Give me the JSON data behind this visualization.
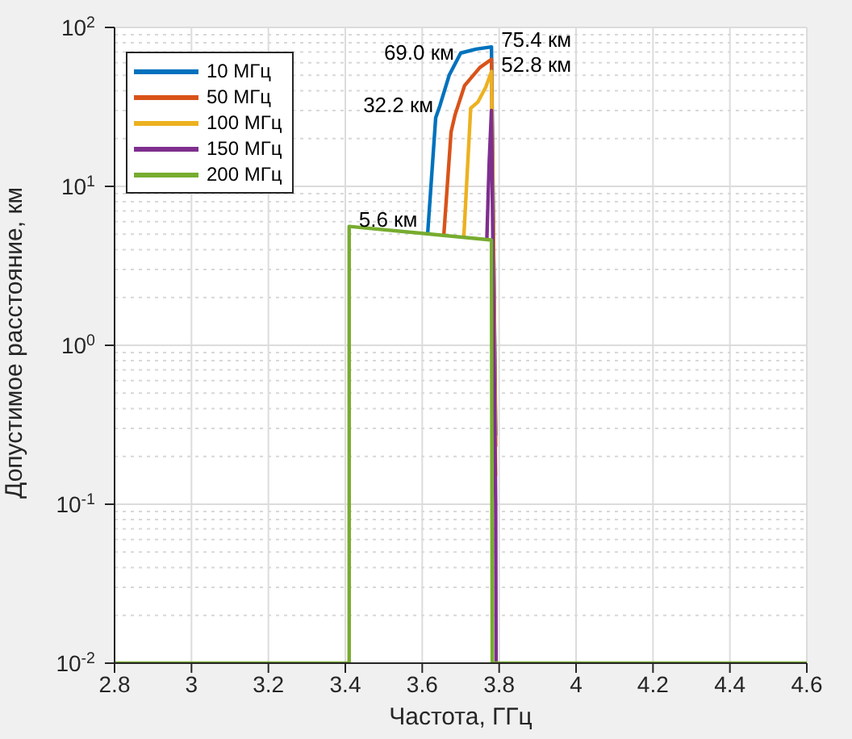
{
  "chart_data": {
    "type": "line",
    "xlabel": "Частота, ГГц",
    "ylabel": "Допустимое расстояние, км",
    "log": "y",
    "grid": true,
    "legend": "top left",
    "marker": "none",
    "line_style": "solid",
    "xlim": [
      2.8,
      4.6
    ],
    "xticks": [
      2.8,
      3,
      3.2,
      3.4,
      3.6,
      3.8,
      4,
      4.2,
      4.4,
      4.6
    ],
    "ylim": [
      0.01,
      100
    ],
    "yticks": [
      {
        "value": 0.01,
        "label": "10$^{-2}$"
      },
      {
        "value": 0.1,
        "label": "10$^{-1}$"
      },
      {
        "value": 1,
        "label": "10$^{0}$"
      },
      {
        "value": 10,
        "label": "10$^{1}$"
      },
      {
        "value": 100,
        "label": "10$^{2}$"
      }
    ],
    "series": [
      {
        "name": "10 МГц",
        "color": "#0072bd",
        "x": [
          3.614,
          3.635,
          3.646,
          3.67,
          3.7,
          3.74,
          3.78,
          3.791
        ],
        "values": [
          5.0,
          27,
          32.2,
          50,
          69.0,
          73,
          75.4,
          0.27
        ]
      },
      {
        "name": "50 МГц",
        "color": "#d95319",
        "x": [
          3.656,
          3.675,
          3.685,
          3.71,
          3.75,
          3.78,
          3.791
        ],
        "values": [
          4.9,
          22,
          28,
          43,
          56,
          63,
          0.23
        ]
      },
      {
        "name": "100 МГц",
        "color": "#edb120",
        "x": [
          3.708,
          3.726,
          3.745,
          3.765,
          3.78,
          3.791
        ],
        "values": [
          4.75,
          31,
          34,
          42,
          52.8,
          0.15
        ]
      },
      {
        "name": "150 МГц",
        "color": "#7e2f8e",
        "x": [
          3.768,
          3.774,
          3.78,
          3.791,
          3.792
        ],
        "values": [
          4.65,
          14,
          30,
          0.1,
          0.01
        ]
      },
      {
        "name": "200 МГц",
        "color": "#77ac30",
        "x": [
          2.8,
          3.41,
          3.41,
          3.78,
          3.782,
          4.6
        ],
        "values": [
          0.01,
          0.01,
          5.6,
          4.6,
          0.01,
          0.01
        ]
      }
    ],
    "annotations": [
      {
        "text": "69.0 км",
        "x": 3.7,
        "y": 69.0
      },
      {
        "text": "75.4 км",
        "x": 3.78,
        "y": 75.4
      },
      {
        "text": "32.2 км",
        "x": 3.646,
        "y": 32.2
      },
      {
        "text": "52.8 км",
        "x": 3.78,
        "y": 52.8
      },
      {
        "text": "5.6 км",
        "x": 3.41,
        "y": 5.6
      }
    ]
  }
}
